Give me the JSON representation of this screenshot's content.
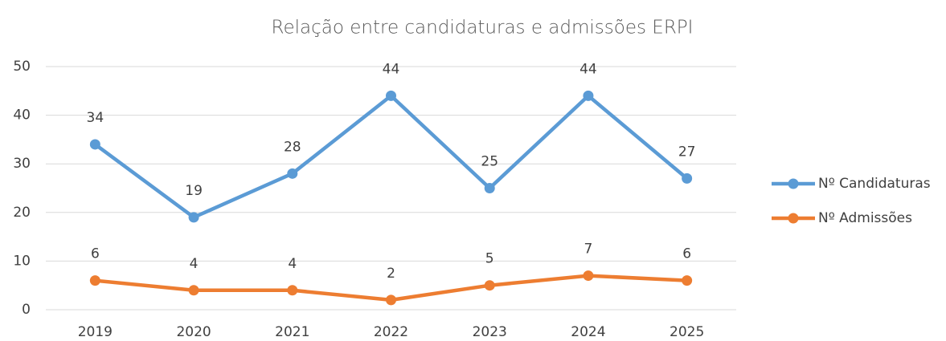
{
  "chart_data": {
    "type": "line",
    "title": "Relação entre candidaturas e admissões ERPI",
    "categories": [
      "2019",
      "2020",
      "2021",
      "2022",
      "2023",
      "2024",
      "2025"
    ],
    "series": [
      {
        "name": "Nº Candidaturas",
        "color": "#5b9bd5",
        "values": [
          34,
          19,
          28,
          44,
          25,
          44,
          27
        ]
      },
      {
        "name": "Nº Admissões",
        "color": "#ed7d31",
        "values": [
          6,
          4,
          4,
          2,
          5,
          7,
          6
        ]
      }
    ],
    "ylim": [
      0,
      50
    ],
    "yticks": [
      0,
      10,
      20,
      30,
      40,
      50
    ],
    "grid": true,
    "legend": "right"
  }
}
